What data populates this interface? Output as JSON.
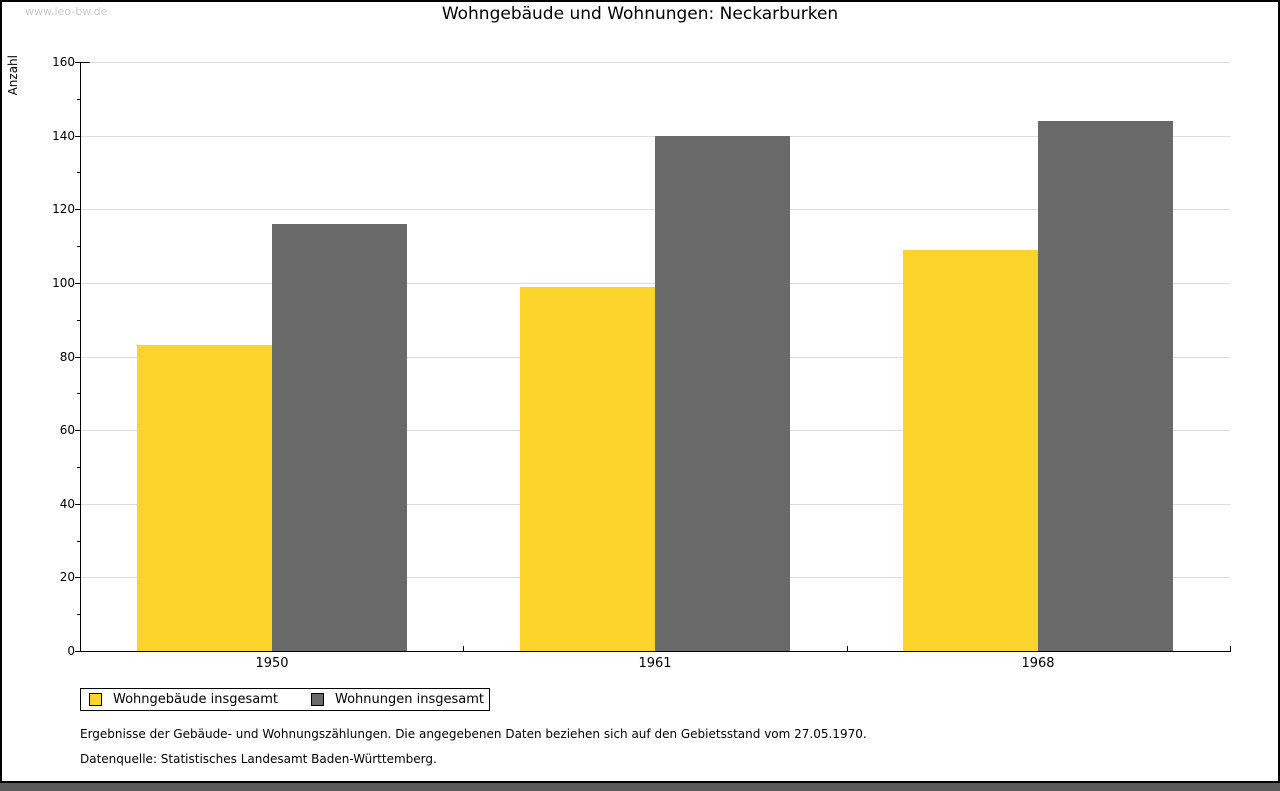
{
  "window": {
    "watermark": "www.leo-bw.de"
  },
  "chart_data": {
    "type": "bar",
    "title": "Wohngebäude und Wohnungen: Neckarburken",
    "xlabel": "",
    "ylabel": "Anzahl",
    "categories": [
      "1950",
      "1961",
      "1968"
    ],
    "series": [
      {
        "name": "Wohngebäude insgesamt",
        "color": "#fcd42c",
        "values": [
          83,
          99,
          109
        ]
      },
      {
        "name": "Wohnungen insgesamt",
        "color": "#696969",
        "values": [
          116,
          140,
          144
        ]
      }
    ],
    "ylim": [
      0,
      160
    ],
    "ytick_step": 20,
    "yminor_step": 10,
    "grid": true,
    "gridline_color": "#dcdcdc",
    "legend_position": "bottom-left"
  },
  "footnotes": {
    "line1": "Ergebnisse der Gebäude- und Wohnungszählungen. Die angegebenen Daten beziehen sich auf den Gebietsstand vom 27.05.1970.",
    "line2": "Datenquelle: Statistisches Landesamt Baden-Württemberg."
  },
  "colors": {
    "axis": "#000000",
    "gridline": "#dcdcdc",
    "watermark": "#c9c9c9",
    "bottom_band": "#5a5a5a",
    "background": "#ffffff"
  }
}
